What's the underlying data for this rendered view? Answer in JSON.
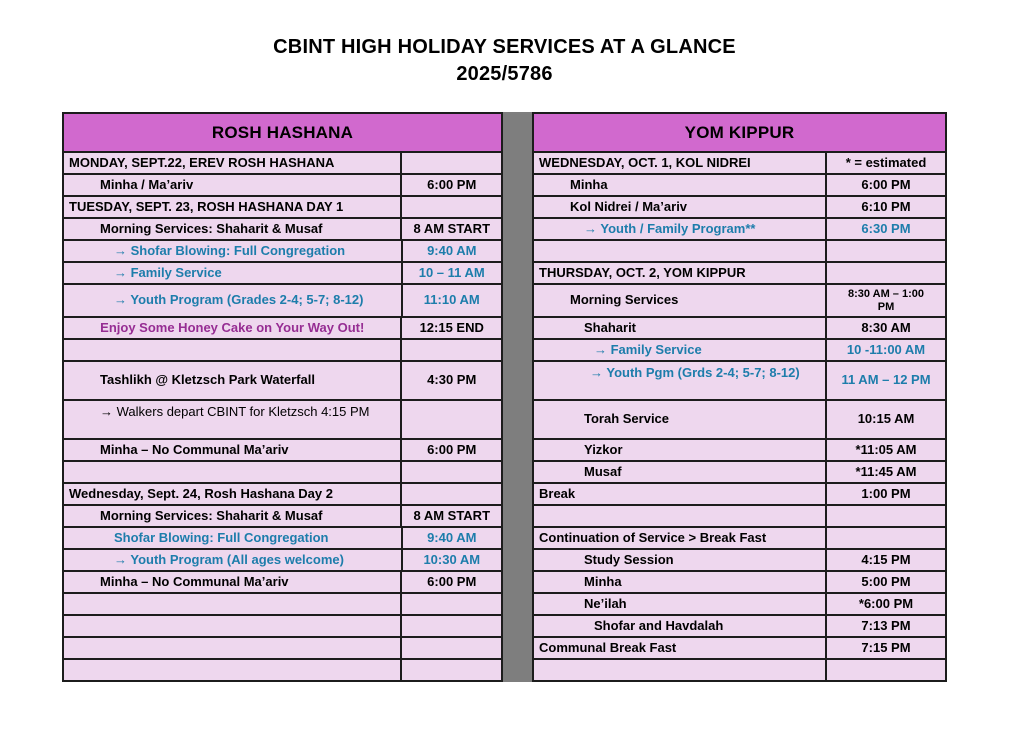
{
  "title": {
    "line1": "CBINT HIGH HOLIDAY SERVICES AT A GLANCE",
    "line2": "2025/5786"
  },
  "colors": {
    "header_bg": "#d169ce",
    "row_bg": "#eed7ee",
    "divider_gray": "#7e7e7e",
    "border": "#1c1c1c",
    "teal_text": "#1d7dab",
    "purple_text": "#962d93",
    "black_text": "#000000"
  },
  "tables": {
    "left": {
      "header": "ROSH HASHANA"
    },
    "right": {
      "header": "YOM KIPPUR"
    }
  },
  "legend": "* = estimated",
  "rows": [
    {
      "left": {
        "text": "MONDAY, SEPT.22, EREV ROSH HASHANA",
        "time": "",
        "cls": "day"
      },
      "right": {
        "text": "WEDNESDAY, OCT. 1, KOL NIDREI",
        "time": "* = estimated",
        "cls": "day"
      }
    },
    {
      "left": {
        "text": "Minha / Ma’ariv",
        "time": "6:00 PM",
        "cls": "ind1"
      },
      "right": {
        "text": "Minha",
        "time": "6:00 PM",
        "cls": "ind1"
      }
    },
    {
      "left": {
        "text": "TUESDAY, SEPT. 23, ROSH HASHANA DAY 1",
        "time": "",
        "cls": "day"
      },
      "right": {
        "text": "Kol Nidrei / Ma’ariv",
        "time": "6:10 PM",
        "cls": "ind1"
      }
    },
    {
      "left": {
        "text": "Morning Services: Shaharit & Musaf",
        "time": "8 AM START",
        "cls": "ind1"
      },
      "right": {
        "text": "→ Youth / Family Program**",
        "time": "6:30 PM",
        "cls": "ind2 teal",
        "time_cls": "teal"
      }
    },
    {
      "left": {
        "text": "→ Shofar Blowing: Full Congregation",
        "time": "9:40 AM",
        "cls": "ind2 teal",
        "time_cls": "teal"
      },
      "right": {
        "text": "",
        "time": ""
      }
    },
    {
      "left": {
        "text": "→ Family Service",
        "time": "10 – 11 AM",
        "cls": "ind2 teal",
        "time_cls": "teal"
      },
      "right": {
        "text": "THURSDAY, OCT. 2, YOM KIPPUR",
        "time": "",
        "cls": "day"
      }
    },
    {
      "h": 31,
      "left": {
        "text": "→ Youth Program (Grades 2-4; 5-7; 8-12)",
        "time": "11:10 AM",
        "cls": "ind2 teal",
        "time_cls": "teal"
      },
      "right": {
        "text": "Morning Services",
        "time": "8:30 AM – 1:00 PM",
        "cls": "ind1",
        "time_cls": "small"
      }
    },
    {
      "left": {
        "text": "Enjoy Some Honey Cake on Your Way Out!",
        "time": "12:15 END",
        "cls": "center purple"
      },
      "right": {
        "text": "Shaharit",
        "time": "8:30 AM",
        "cls": "ind2"
      }
    },
    {
      "left": {
        "text": "",
        "time": ""
      },
      "right": {
        "text": "→ Family Service",
        "time": "10 -11:00 AM",
        "cls": "ind3 teal",
        "time_cls": "teal"
      }
    },
    {
      "h": 37,
      "left": {
        "text": "Tashlikh @ Kletzsch Park Waterfall",
        "time": "4:30 PM",
        "cls": "ind1"
      },
      "right": {
        "text": "→ Youth Pgm (Grds 2-4; 5-7; 8-12)",
        "time": "11 AM – 12 PM",
        "cls": "hang ind3 teal",
        "time_cls": "teal"
      }
    },
    {
      "h": 37,
      "left": {
        "text": "→ Walkers depart CBINT for Kletzsch 4:15 PM",
        "time": "",
        "cls": "hang ind1 normal"
      },
      "right": {
        "text": "Torah Service",
        "time": "10:15 AM",
        "cls": "ind2"
      }
    },
    {
      "left": {
        "text": "Minha – No Communal Ma’ariv",
        "time": "6:00 PM",
        "cls": "ind1"
      },
      "right": {
        "text": "Yizkor",
        "time": "*11:05 AM",
        "cls": "ind2"
      }
    },
    {
      "left": {
        "text": "",
        "time": ""
      },
      "right": {
        "text": "Musaf",
        "time": "*11:45 AM",
        "cls": "ind2"
      }
    },
    {
      "left": {
        "text": "Wednesday, Sept. 24, Rosh Hashana Day 2",
        "time": "",
        "cls": "day"
      },
      "right": {
        "text": "Break",
        "time": "1:00 PM",
        "cls": "day"
      }
    },
    {
      "left": {
        "text": "Morning Services: Shaharit & Musaf",
        "time": "8 AM START",
        "cls": "ind1"
      },
      "right": {
        "text": "",
        "time": ""
      }
    },
    {
      "left": {
        "text": "Shofar Blowing: Full Congregation",
        "time": "9:40 AM",
        "cls": "ind2 teal",
        "time_cls": "teal"
      },
      "right": {
        "text": "Continuation of Service > Break Fast",
        "time": "",
        "cls": "day"
      }
    },
    {
      "left": {
        "text": "→ Youth Program (All ages welcome)",
        "time": "10:30 AM",
        "cls": "ind2 teal",
        "time_cls": "teal"
      },
      "right": {
        "text": "Study Session",
        "time": "4:15 PM",
        "cls": "ind2"
      }
    },
    {
      "left": {
        "text": "Minha – No Communal Ma’ariv",
        "time": "6:00 PM",
        "cls": "ind1"
      },
      "right": {
        "text": "Minha",
        "time": "5:00 PM",
        "cls": "ind2"
      }
    },
    {
      "left": {
        "text": "",
        "time": ""
      },
      "right": {
        "text": "Ne’ilah",
        "time": "*6:00 PM",
        "cls": "ind2"
      }
    },
    {
      "left": {
        "text": "",
        "time": ""
      },
      "right": {
        "text": "Shofar and Havdalah",
        "time": "7:13 PM",
        "cls": "ind3"
      }
    },
    {
      "left": {
        "text": "",
        "time": ""
      },
      "right": {
        "text": "Communal Break Fast",
        "time": "7:15 PM",
        "cls": "day"
      }
    },
    {
      "left": {
        "text": "",
        "time": ""
      },
      "right": {
        "text": "",
        "time": ""
      }
    }
  ]
}
